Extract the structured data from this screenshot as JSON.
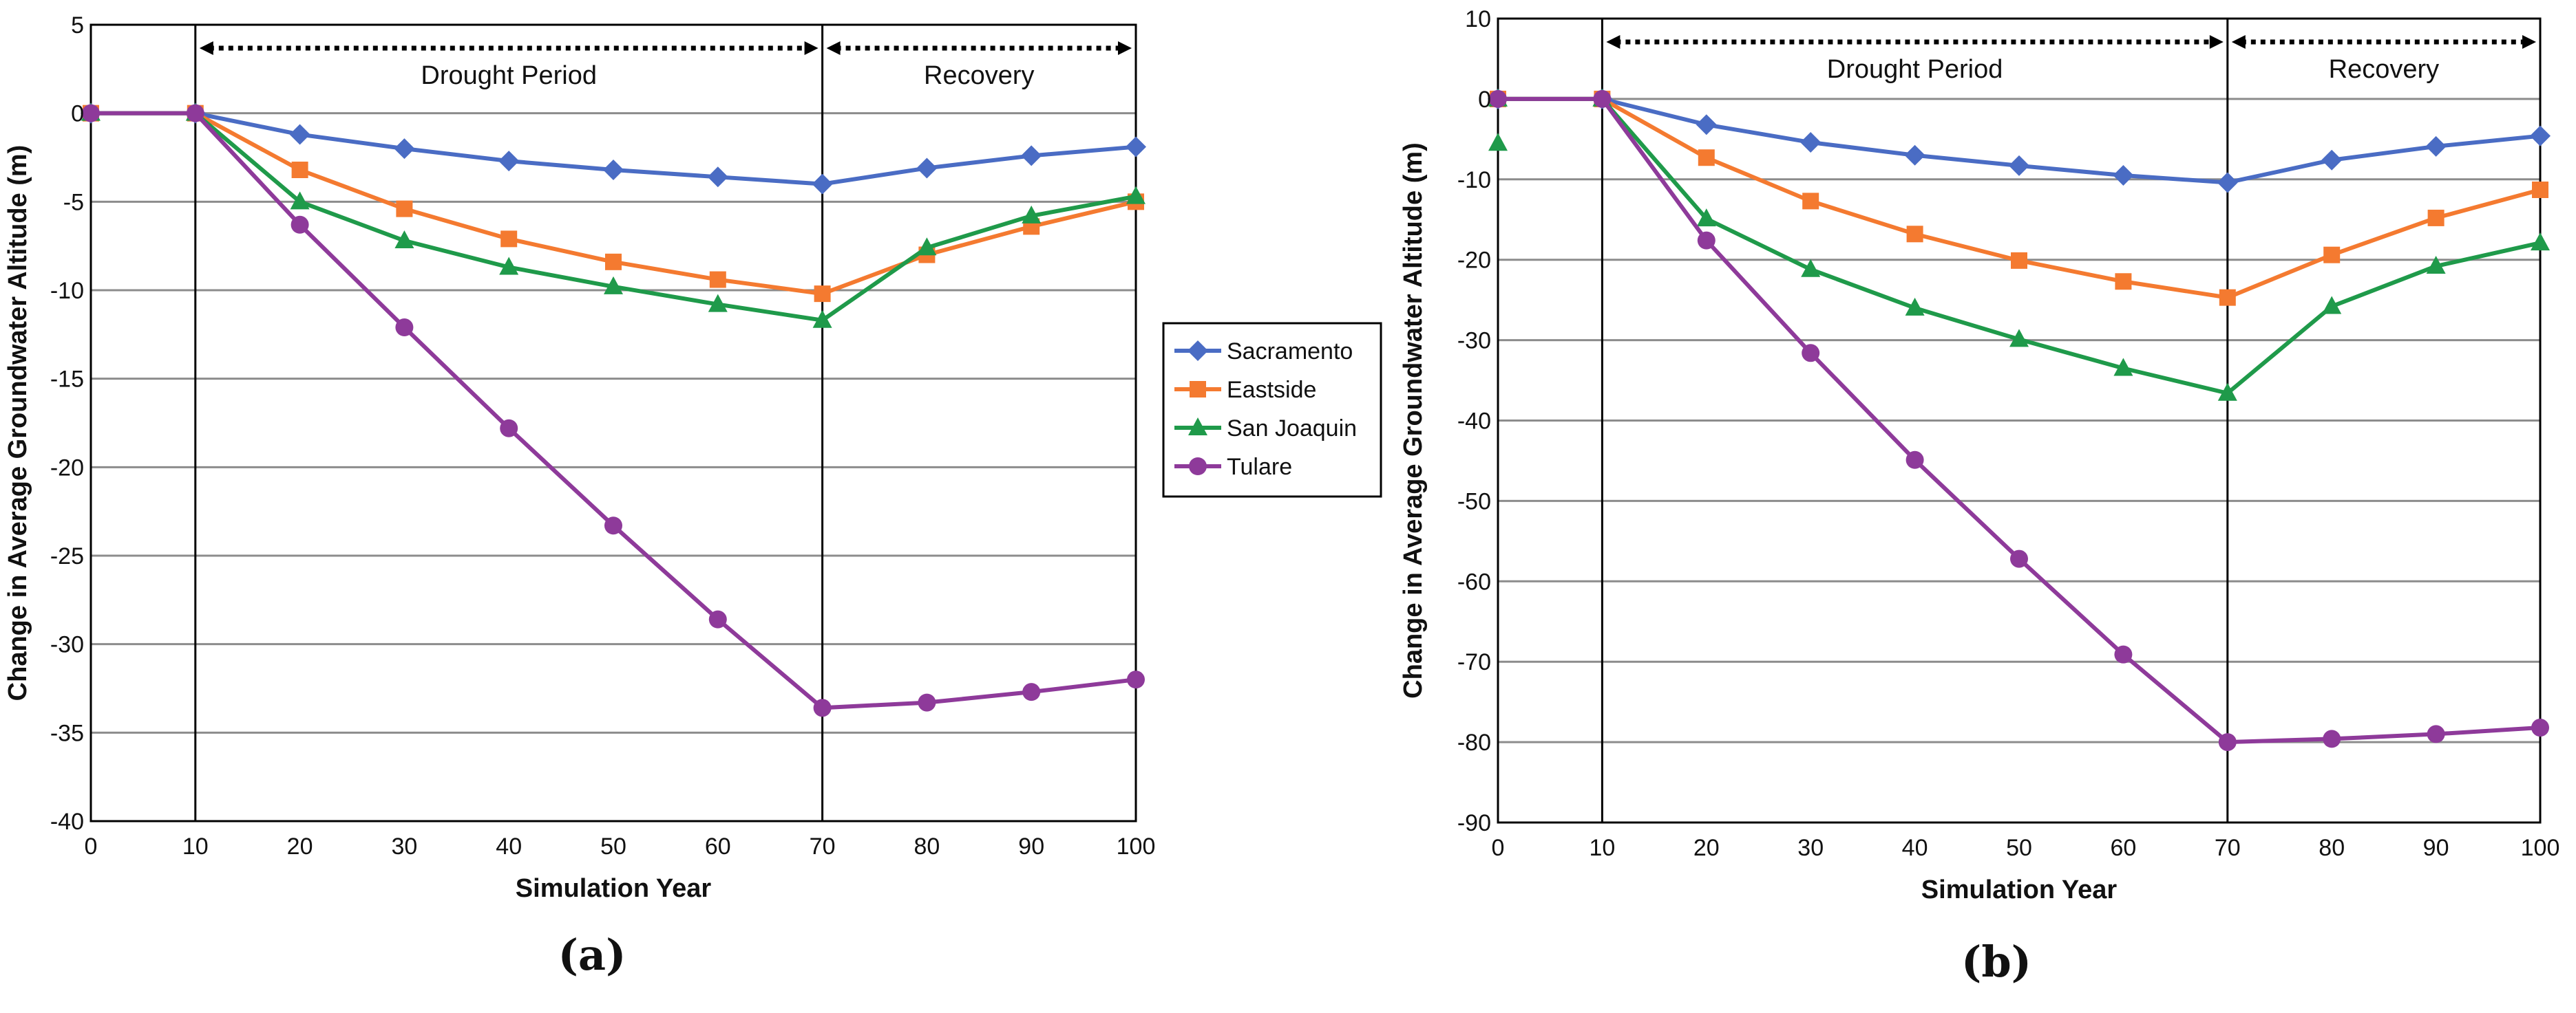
{
  "colors": {
    "Sacramento": "#4A6CC4",
    "Eastside": "#F47A30",
    "San Joaquin": "#1F9A4A",
    "Tulare": "#8E3A9A",
    "grid": "#8c8c8c",
    "axis": "#000000"
  },
  "legend": {
    "entries": [
      {
        "name": "Sacramento",
        "marker": "diamond"
      },
      {
        "name": "Eastside",
        "marker": "square"
      },
      {
        "name": "San Joaquin",
        "marker": "triangle"
      },
      {
        "name": "Tulare",
        "marker": "circle"
      }
    ]
  },
  "chart_data": [
    {
      "type": "line",
      "panel_label": "(a)",
      "xlabel": "Simulation Year",
      "ylabel": "Change in Average Groundwater Altitude (m)",
      "xlim": [
        0,
        100
      ],
      "ylim": [
        -40,
        5
      ],
      "xticks": [
        0,
        10,
        20,
        30,
        40,
        50,
        60,
        70,
        80,
        90,
        100
      ],
      "yticks": [
        5,
        0,
        -5,
        -10,
        -15,
        -20,
        -25,
        -30,
        -35,
        -40
      ],
      "grid": true,
      "annotations": [
        {
          "text": "Drought Period",
          "from": 10,
          "to": 70
        },
        {
          "text": "Recovery",
          "from": 70,
          "to": 100
        }
      ],
      "x": [
        0,
        10,
        20,
        30,
        40,
        50,
        60,
        70,
        80,
        90,
        100
      ],
      "series": [
        {
          "name": "Sacramento",
          "marker": "diamond",
          "values": [
            0,
            0,
            -1.2,
            -2.0,
            -2.7,
            -3.2,
            -3.6,
            -4.0,
            -3.1,
            -2.4,
            -1.9
          ]
        },
        {
          "name": "Eastside",
          "marker": "square",
          "values": [
            0,
            0,
            -3.2,
            -5.4,
            -7.1,
            -8.4,
            -9.4,
            -10.2,
            -8.0,
            -6.4,
            -5.0
          ]
        },
        {
          "name": "San Joaquin",
          "marker": "triangle",
          "values": [
            0,
            0,
            -5.0,
            -7.2,
            -8.7,
            -9.8,
            -10.8,
            -11.7,
            -7.6,
            -5.8,
            -4.7
          ]
        },
        {
          "name": "Tulare",
          "marker": "circle",
          "values": [
            0,
            0,
            -6.3,
            -12.1,
            -17.8,
            -23.3,
            -28.6,
            -33.6,
            -33.3,
            -32.7,
            -32.0
          ]
        }
      ]
    },
    {
      "type": "line",
      "panel_label": "(b)",
      "xlabel": "Simulation Year",
      "ylabel": "Change in Average Groundwater Altitude (m)",
      "xlim": [
        0,
        100
      ],
      "ylim": [
        -90,
        10
      ],
      "xticks": [
        0,
        10,
        20,
        30,
        40,
        50,
        60,
        70,
        80,
        90,
        100
      ],
      "yticks": [
        10,
        0,
        -10,
        -20,
        -30,
        -40,
        -50,
        -60,
        -70,
        -80,
        -90
      ],
      "grid": true,
      "annotations": [
        {
          "text": "Drought Period",
          "from": 10,
          "to": 70
        },
        {
          "text": "Recovery",
          "from": 70,
          "to": 100
        }
      ],
      "x": [
        0,
        10,
        20,
        30,
        40,
        50,
        60,
        70,
        80,
        90,
        100
      ],
      "series": [
        {
          "name": "Sacramento",
          "marker": "diamond",
          "values": [
            0,
            0,
            -3.2,
            -5.4,
            -7.0,
            -8.3,
            -9.5,
            -10.4,
            -7.6,
            -5.9,
            -4.6
          ]
        },
        {
          "name": "Eastside",
          "marker": "square",
          "values": [
            0,
            0,
            -7.3,
            -12.7,
            -16.8,
            -20.1,
            -22.7,
            -24.7,
            -19.4,
            -14.8,
            -11.3
          ]
        },
        {
          "name": "San Joaquin",
          "marker": "triangle",
          "values": [
            0,
            0,
            -14.9,
            -21.2,
            -26.0,
            -29.9,
            -33.5,
            -36.6,
            -25.8,
            -20.8,
            -17.9
          ]
        },
        {
          "name": "Tulare",
          "marker": "circle",
          "values": [
            0,
            0,
            -17.6,
            -31.6,
            -44.9,
            -57.2,
            -69.1,
            -80.0,
            -79.6,
            -79.0,
            -78.2
          ]
        }
      ],
      "extra_points": [
        {
          "series": "San Joaquin",
          "marker": "triangle",
          "x": 0,
          "y": -5.5
        }
      ]
    }
  ]
}
